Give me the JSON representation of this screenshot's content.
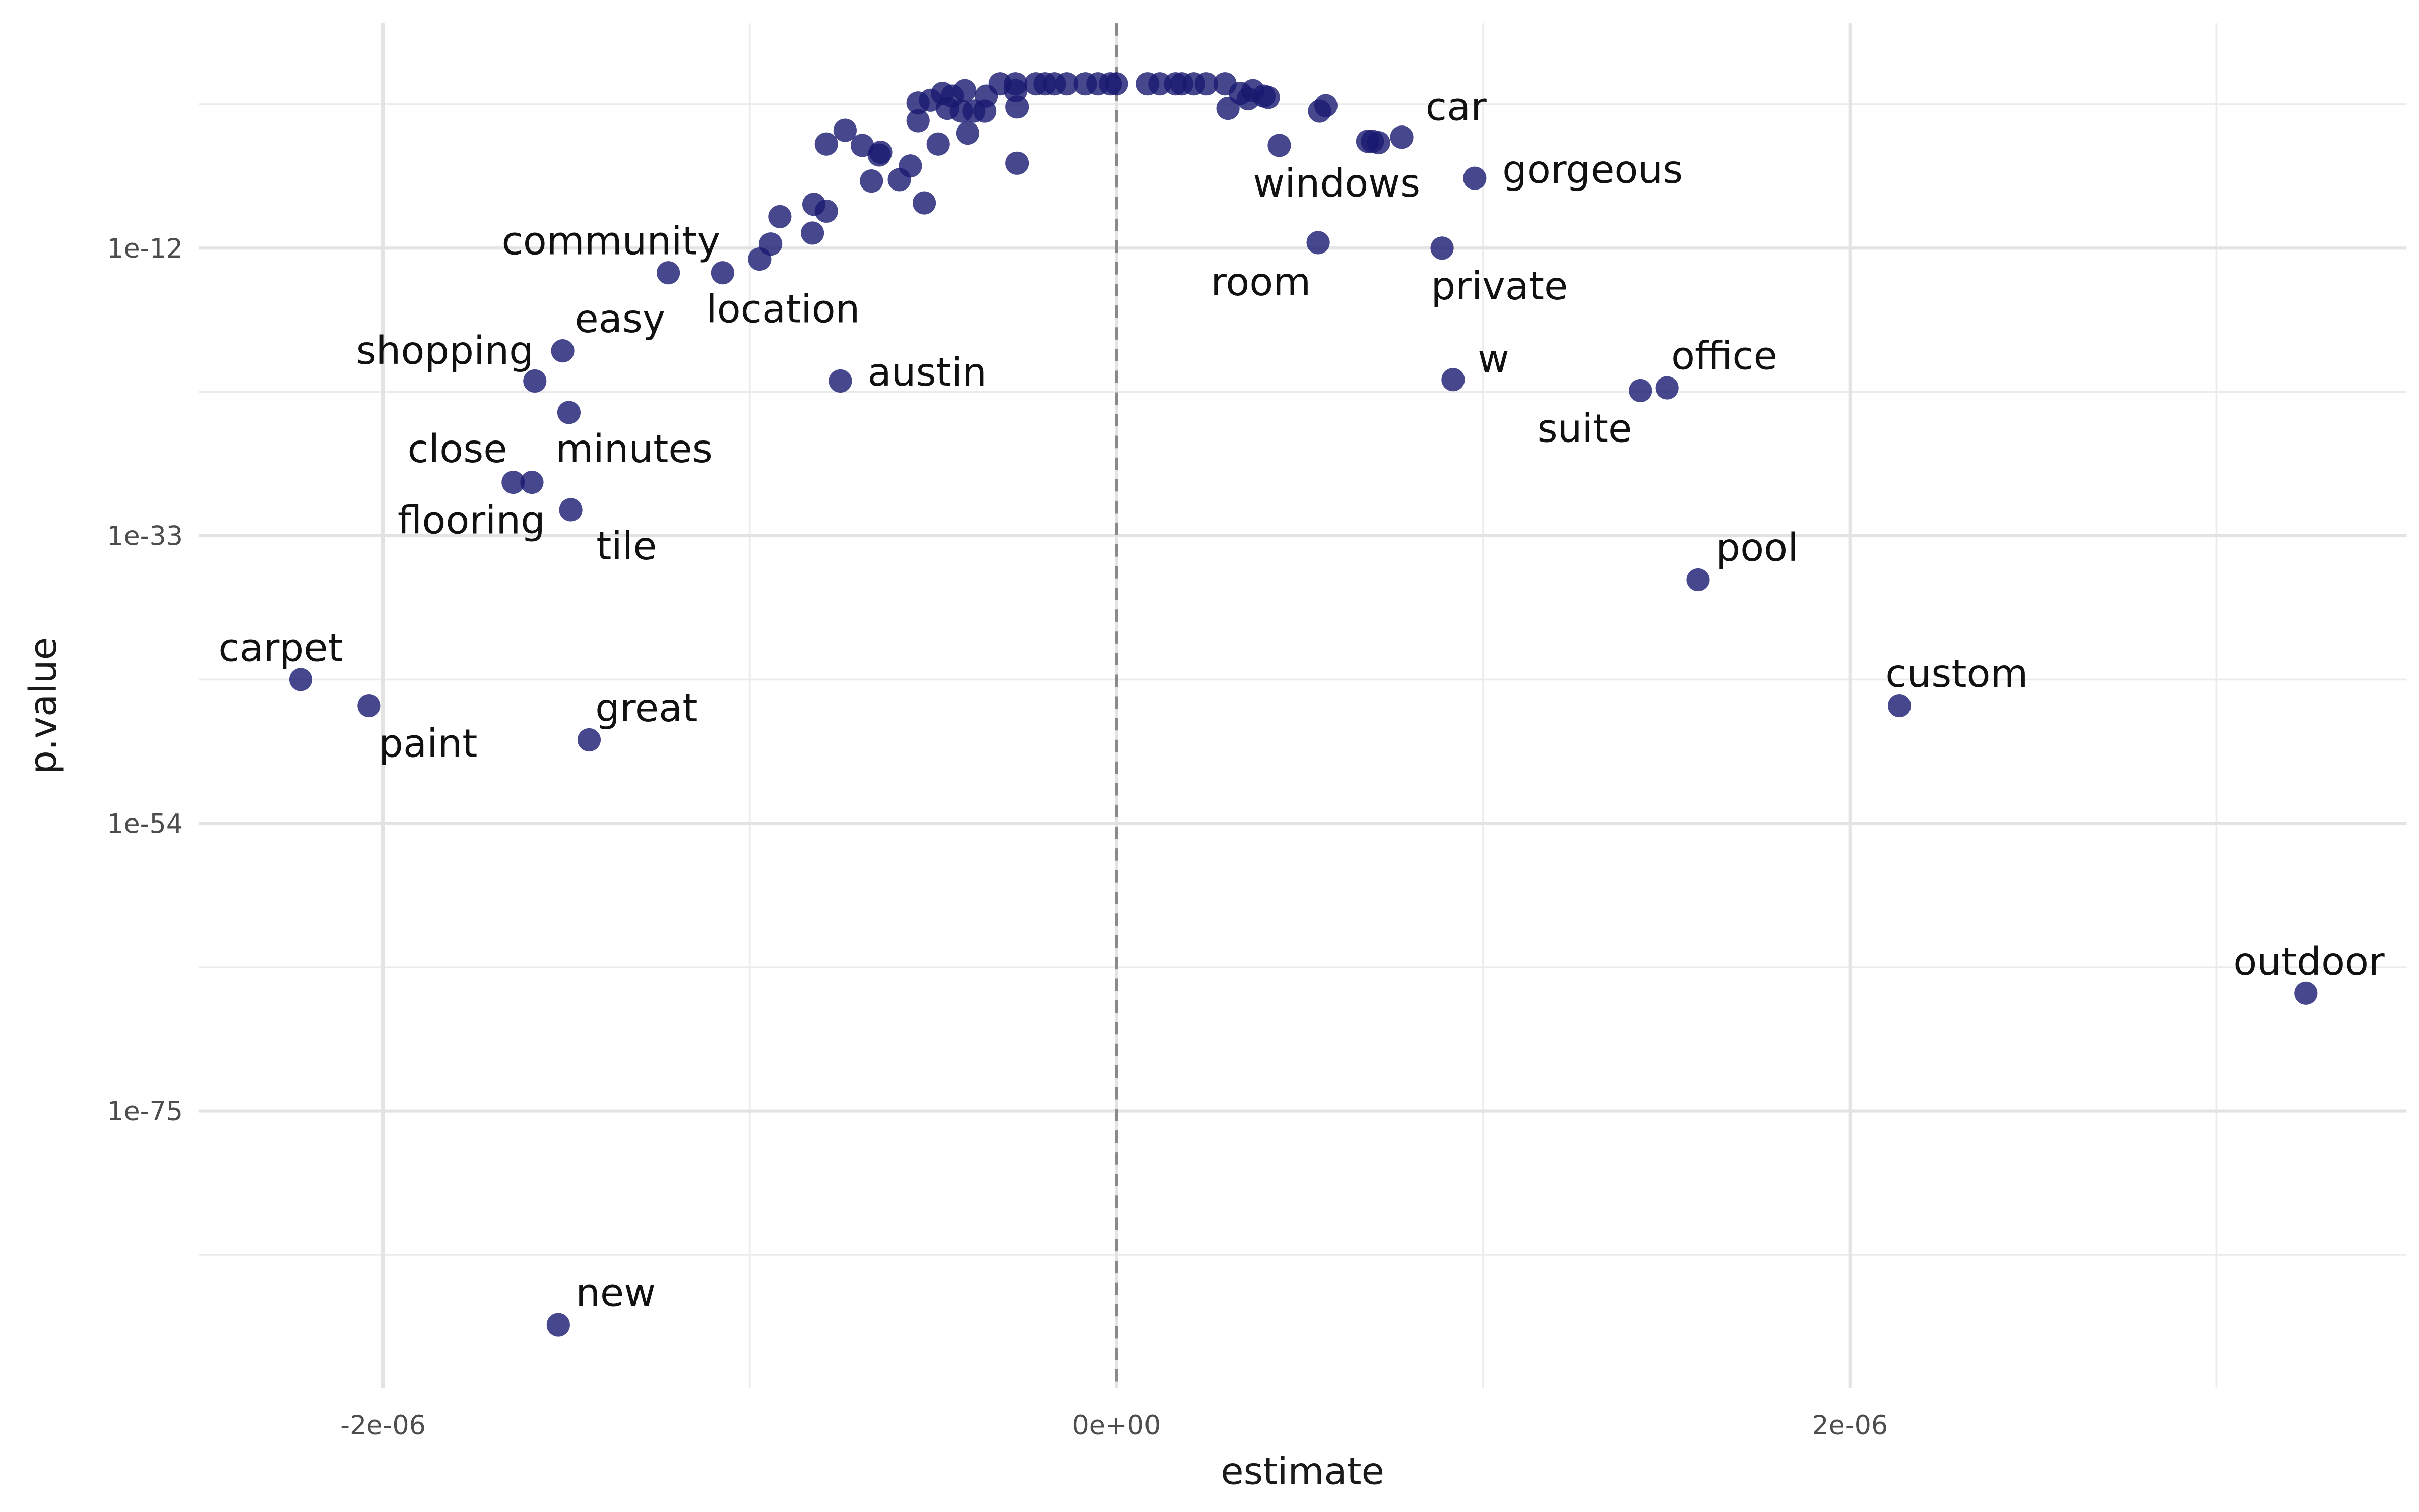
{
  "chart_data": {
    "type": "scatter",
    "title": "",
    "xlabel": "estimate",
    "ylabel": "p.value",
    "x_unit_note": "estimate values in units of 1e-06",
    "y_scale": "log10, reversed",
    "xlim": [
      -2.503e-06,
      3.518e-06
    ],
    "ylim_log10": [
      4.4,
      -95.2
    ],
    "x_ticks": [
      {
        "value": -2e-06,
        "label": "-2e-06"
      },
      {
        "value": 0,
        "label": "0e+00"
      },
      {
        "value": 2e-06,
        "label": "2e-06"
      }
    ],
    "x_minor": [
      -1e-06,
      1e-06,
      3e-06
    ],
    "y_ticks": [
      {
        "log10": -12,
        "label": "1e-12"
      },
      {
        "log10": -33,
        "label": "1e-33"
      },
      {
        "log10": -54,
        "label": "1e-54"
      },
      {
        "log10": -75,
        "label": "1e-75"
      }
    ],
    "y_minor_log10": [
      -1.5,
      -22.5,
      -43.5,
      -64.5,
      -85.5
    ],
    "reference_line": {
      "x": 0,
      "style": "dashed"
    },
    "grid": true,
    "point_color": "#191970",
    "labeled_points": [
      {
        "label": "car",
        "estimate": 7.78e-07,
        "log10_p": -3.9
      },
      {
        "label": "gorgeous",
        "estimate": 9.77e-07,
        "log10_p": -6.9
      },
      {
        "label": "windows",
        "estimate": 4.44e-07,
        "log10_p": -4.5
      },
      {
        "label": "room",
        "estimate": 5.5e-07,
        "log10_p": -11.6
      },
      {
        "label": "private",
        "estimate": 8.88e-07,
        "log10_p": -12.0
      },
      {
        "label": "community",
        "estimate": -1.222e-06,
        "log10_p": -13.8
      },
      {
        "label": "location",
        "estimate": -1.074e-06,
        "log10_p": -13.8
      },
      {
        "label": "easy",
        "estimate": -1.51e-06,
        "log10_p": -19.5
      },
      {
        "label": "shopping",
        "estimate": -1.586e-06,
        "log10_p": -21.7
      },
      {
        "label": "minutes",
        "estimate": -1.493e-06,
        "log10_p": -24.0
      },
      {
        "label": "close",
        "estimate": -1.645e-06,
        "log10_p": -29.1
      },
      {
        "label": "flooring",
        "estimate": -1.594e-06,
        "log10_p": -29.1
      },
      {
        "label": "tile",
        "estimate": -1.488e-06,
        "log10_p": -31.1
      },
      {
        "label": "austin",
        "estimate": -7.53e-07,
        "log10_p": -21.7
      },
      {
        "label": "w",
        "estimate": 9.18e-07,
        "log10_p": -21.6
      },
      {
        "label": "office",
        "estimate": 1.501e-06,
        "log10_p": -22.2
      },
      {
        "label": "suite",
        "estimate": 1.429e-06,
        "log10_p": -22.4
      },
      {
        "label": "pool",
        "estimate": 1.586e-06,
        "log10_p": -36.2
      },
      {
        "label": "custom",
        "estimate": 2.135e-06,
        "log10_p": -45.4
      },
      {
        "label": "outdoor",
        "estimate": 3.243e-06,
        "log10_p": -66.4
      },
      {
        "label": "carpet",
        "estimate": -2.224e-06,
        "log10_p": -43.5
      },
      {
        "label": "paint",
        "estimate": -2.038e-06,
        "log10_p": -45.4
      },
      {
        "label": "great",
        "estimate": -1.438e-06,
        "log10_p": -47.9
      },
      {
        "label": "new",
        "estimate": -1.522e-06,
        "log10_p": -90.6
      }
    ],
    "unlabeled_points": [
      [
        -0.973,
        -12.8
      ],
      [
        -0.943,
        -11.7
      ],
      [
        -0.918,
        -9.7
      ],
      [
        -0.829,
        -10.9
      ],
      [
        -0.825,
        -8.8
      ],
      [
        -0.791,
        -9.3
      ],
      [
        -0.791,
        -4.4
      ],
      [
        -0.74,
        -3.4
      ],
      [
        -0.693,
        -4.5
      ],
      [
        -0.668,
        -7.1
      ],
      [
        -0.647,
        -5.2
      ],
      [
        -0.643,
        -5.0
      ],
      [
        -0.592,
        -7.0
      ],
      [
        -0.562,
        -6.0
      ],
      [
        -0.524,
        -8.7
      ],
      [
        -0.541,
        -2.7
      ],
      [
        -0.541,
        -1.4
      ],
      [
        -0.507,
        -1.2
      ],
      [
        -0.486,
        -4.4
      ],
      [
        -0.474,
        -0.7
      ],
      [
        -0.461,
        -1.8
      ],
      [
        -0.448,
        -0.9
      ],
      [
        -0.414,
        -0.5
      ],
      [
        -0.406,
        -3.6
      ],
      [
        -0.423,
        -2.0
      ],
      [
        -0.389,
        -2.0
      ],
      [
        -0.359,
        -2.0
      ],
      [
        -0.355,
        -0.9
      ],
      [
        -0.317,
        0
      ],
      [
        -0.275,
        -0.5
      ],
      [
        -0.271,
        -1.7
      ],
      [
        -0.271,
        -5.8
      ],
      [
        -0.275,
        0
      ],
      [
        -0.22,
        0
      ],
      [
        -0.195,
        0
      ],
      [
        -0.169,
        0
      ],
      [
        -0.135,
        0
      ],
      [
        -0.085,
        0
      ],
      [
        -0.051,
        0
      ],
      [
        -0.017,
        0
      ],
      [
        0,
        0
      ],
      [
        0.085,
        0
      ],
      [
        0.118,
        0
      ],
      [
        0.161,
        0
      ],
      [
        0.178,
        0
      ],
      [
        0.211,
        0
      ],
      [
        0.245,
        0
      ],
      [
        0.296,
        0
      ],
      [
        0.304,
        -1.8
      ],
      [
        0.338,
        -0.7
      ],
      [
        0.359,
        -1.1
      ],
      [
        0.372,
        -0.5
      ],
      [
        0.402,
        -0.9
      ],
      [
        0.414,
        -1.0
      ],
      [
        0.554,
        -2.0
      ],
      [
        0.571,
        -1.6
      ],
      [
        0.698,
        -4.2
      ],
      [
        0.715,
        -4.3
      ],
      [
        0.685,
        -4.2
      ]
    ]
  }
}
